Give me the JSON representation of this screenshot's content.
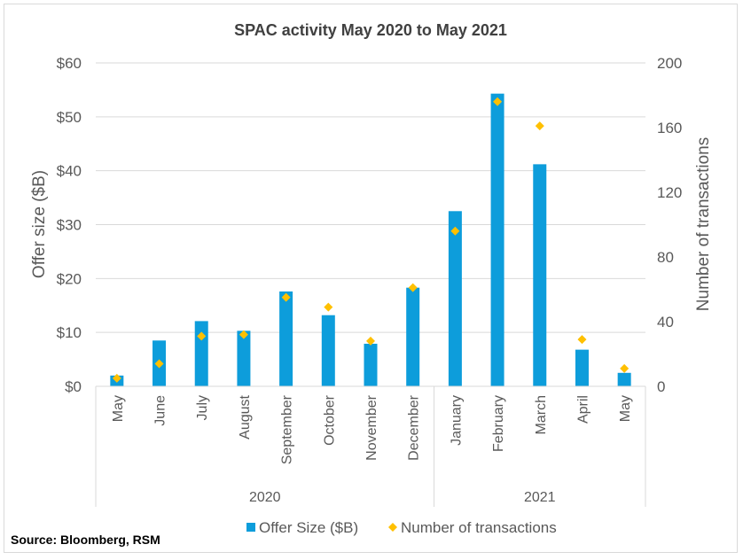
{
  "chart_data": {
    "type": "bar",
    "title": "SPAC activity May 2020 to May 2021",
    "categories": [
      "May",
      "June",
      "July",
      "August",
      "September",
      "October",
      "November",
      "December",
      "January",
      "February",
      "March",
      "April",
      "May"
    ],
    "year_groups": [
      {
        "label": "2020",
        "count": 8
      },
      {
        "label": "2021",
        "count": 5
      }
    ],
    "series": [
      {
        "name": "Offer Size ($B)",
        "type": "bar",
        "axis": "left",
        "color": "#0d9ddb",
        "values": [
          2.0,
          8.5,
          12.1,
          10.3,
          17.6,
          13.2,
          7.9,
          18.3,
          32.5,
          54.3,
          41.2,
          6.8,
          2.5
        ]
      },
      {
        "name": "Number of transactions",
        "type": "scatter",
        "axis": "right",
        "color": "#ffc000",
        "values": [
          5,
          14,
          31,
          32,
          55,
          49,
          28,
          61,
          96,
          176,
          161,
          29,
          11
        ]
      }
    ],
    "ylabel": "Offer size ($B)",
    "y2label": "Number of transactions",
    "ylim": [
      0,
      60
    ],
    "y2lim": [
      0,
      200
    ],
    "yticks": [
      "$0",
      "$10",
      "$20",
      "$30",
      "$40",
      "$50",
      "$60"
    ],
    "y2ticks": [
      "0",
      "40",
      "80",
      "120",
      "160",
      "200"
    ],
    "grid": true,
    "legend_position": "bottom"
  },
  "source": "Source: Bloomberg, RSM"
}
